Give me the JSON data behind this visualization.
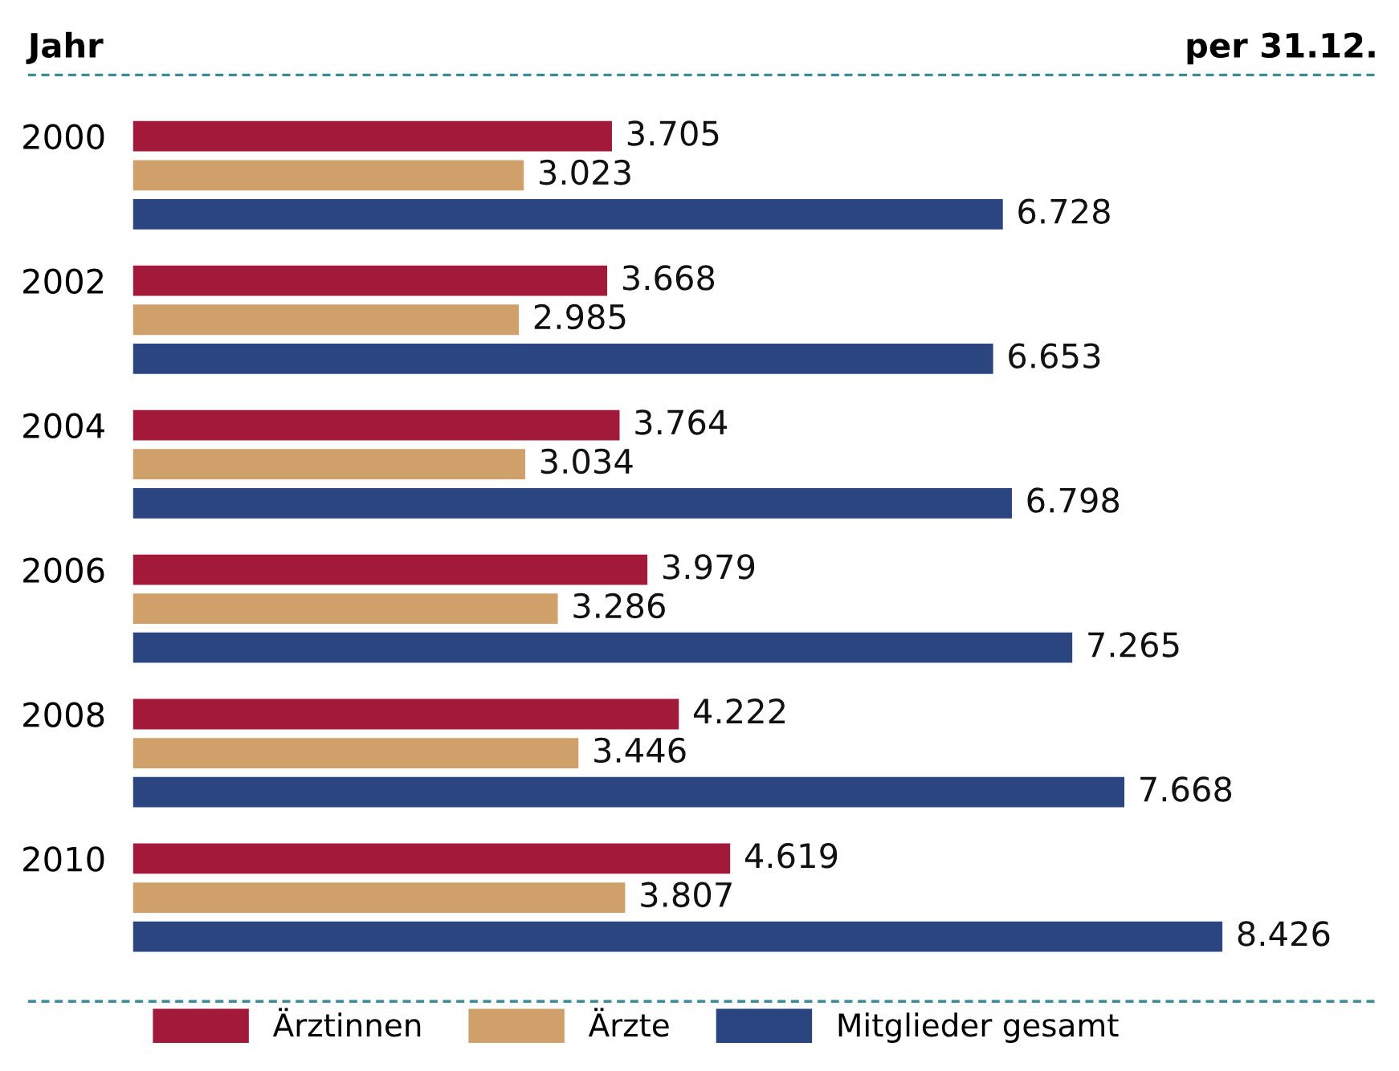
{
  "chart_data": {
    "type": "bar",
    "orientation": "horizontal",
    "ylabel": "Jahr",
    "annotations": [
      "per 31.12."
    ],
    "categories": [
      "2000",
      "2002",
      "2004",
      "2006",
      "2008",
      "2010"
    ],
    "series": [
      {
        "name": "Ärztinnen",
        "color": "#a3193a",
        "values": [
          3.705,
          3.668,
          3.764,
          3.979,
          4.222,
          4.619
        ]
      },
      {
        "name": "Ärzte",
        "color": "#cfa06a",
        "values": [
          3.023,
          2.985,
          3.034,
          3.286,
          3.446,
          3.807
        ]
      },
      {
        "name": "Mitglieder gesamt",
        "color": "#2a4580",
        "values": [
          6.728,
          6.653,
          6.798,
          7.265,
          7.668,
          8.426
        ]
      }
    ],
    "data_labels": true,
    "legend": "bottom",
    "grid": false
  }
}
